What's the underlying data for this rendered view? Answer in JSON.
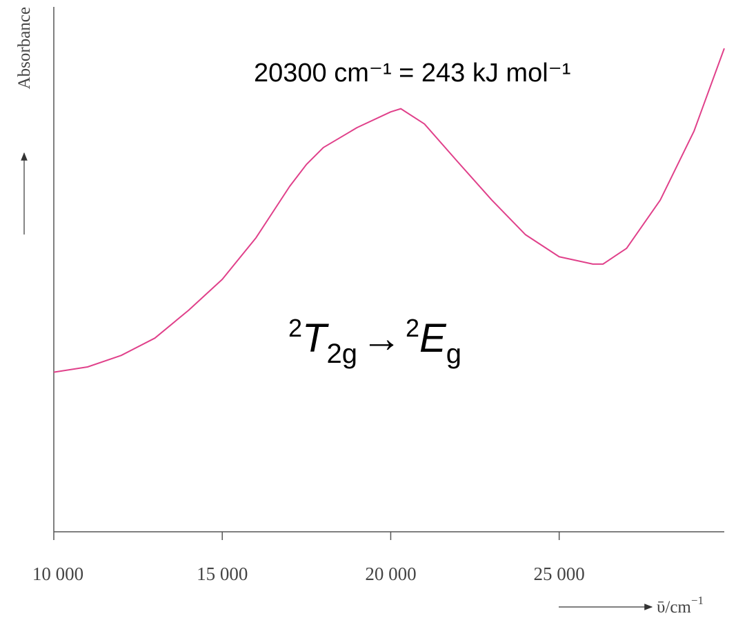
{
  "chart_data": {
    "type": "line",
    "y_label": "Absorbance",
    "x_label": {
      "text": "ῡ/cm",
      "sup": "−1"
    },
    "annotation": "20300 cm⁻¹ = 243 kJ mol⁻¹",
    "transition": {
      "from": {
        "sup": "2",
        "term": "T",
        "sub": "2g"
      },
      "arrow": "→",
      "to": {
        "sup": "2",
        "term": "E",
        "sub": "g"
      }
    },
    "x": [
      10000,
      11000,
      12000,
      13000,
      14000,
      15000,
      16000,
      17000,
      17500,
      18000,
      19000,
      20000,
      20300,
      21000,
      22000,
      23000,
      24000,
      25000,
      26000,
      26300,
      27000,
      28000,
      29000,
      29900
    ],
    "series": [
      {
        "color": "#e0408a",
        "values": [
          30.4,
          31.4,
          33.6,
          36.9,
          42.2,
          48.1,
          56.0,
          65.8,
          70.0,
          73.2,
          77.0,
          80.0,
          80.6,
          77.7,
          70.4,
          63.2,
          56.6,
          52.4,
          51.0,
          51.0,
          54.0,
          63.2,
          76.3,
          92.1
        ]
      }
    ],
    "xlim": [
      10000,
      29900
    ],
    "xticks": [
      {
        "value": 10000,
        "label": "10 000"
      },
      {
        "value": 15000,
        "label": "15 000"
      },
      {
        "value": 20000,
        "label": "20 000"
      },
      {
        "value": 25000,
        "label": "25 000"
      }
    ],
    "ylim": [
      0,
      100
    ]
  }
}
